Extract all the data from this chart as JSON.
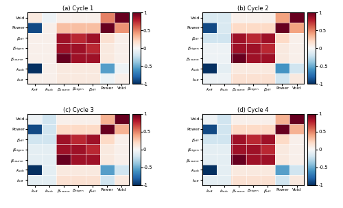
{
  "titles": [
    "(a) Cycle 1",
    "(b) Cycle 2",
    "(c) Cycle 3",
    "(d) Cycle 4"
  ],
  "xlabel_labels": [
    "$k_{\\mathrm{eff}}$",
    "$k_{\\mathrm{sub}}$",
    "$\\beta_{\\mathrm{source}}$",
    "$\\beta_{\\mathrm{eigen}}$",
    "$\\beta_{\\mathrm{eff}}$",
    "Power",
    "Void"
  ],
  "ylabel_labels": [
    "Void",
    "Power",
    "$\\beta_{\\mathrm{eff}}$",
    "$\\beta_{\\mathrm{eigen}}$",
    "$\\beta_{\\mathrm{source}}$",
    "$k_{\\mathrm{sub}}$",
    "$k_{\\mathrm{eff}}$"
  ],
  "matrices": {
    "C1": [
      [
        0.1,
        -0.05,
        0.05,
        0.05,
        0.05,
        0.5,
        1.0
      ],
      [
        -0.9,
        0.05,
        0.3,
        0.3,
        0.3,
        1.0,
        0.45
      ],
      [
        0.05,
        0.05,
        0.85,
        0.75,
        0.85,
        0.15,
        0.05
      ],
      [
        0.05,
        0.05,
        0.85,
        0.85,
        0.75,
        0.1,
        0.05
      ],
      [
        0.05,
        0.05,
        1.0,
        0.85,
        0.85,
        0.1,
        0.05
      ],
      [
        -1.0,
        0.05,
        0.1,
        0.1,
        0.1,
        -0.55,
        -0.05
      ],
      [
        0.05,
        0.05,
        0.1,
        0.1,
        0.1,
        -0.05,
        0.05
      ]
    ],
    "C2": [
      [
        -0.15,
        -0.15,
        0.05,
        0.05,
        0.05,
        0.4,
        1.0
      ],
      [
        -0.9,
        -0.15,
        0.2,
        0.2,
        0.2,
        1.0,
        0.4
      ],
      [
        -0.2,
        -0.2,
        0.85,
        0.75,
        0.85,
        0.2,
        0.05
      ],
      [
        -0.05,
        -0.05,
        0.85,
        0.85,
        0.75,
        0.1,
        0.05
      ],
      [
        -0.05,
        -0.05,
        1.0,
        0.85,
        0.85,
        0.1,
        0.05
      ],
      [
        -1.0,
        -0.1,
        0.1,
        0.1,
        0.1,
        -0.6,
        -0.2
      ],
      [
        -0.05,
        -0.05,
        0.15,
        0.15,
        0.15,
        -0.2,
        0.1
      ]
    ],
    "C3": [
      [
        -0.05,
        -0.2,
        0.05,
        0.05,
        0.05,
        0.35,
        1.0
      ],
      [
        -0.9,
        -0.2,
        0.2,
        0.2,
        0.2,
        1.0,
        0.35
      ],
      [
        -0.2,
        -0.2,
        0.85,
        0.75,
        0.85,
        0.2,
        0.05
      ],
      [
        -0.1,
        -0.1,
        0.85,
        0.85,
        0.75,
        0.1,
        0.05
      ],
      [
        -0.1,
        -0.1,
        1.0,
        0.85,
        0.85,
        0.1,
        0.05
      ],
      [
        -1.0,
        -0.1,
        0.1,
        0.1,
        0.1,
        -0.55,
        -0.2
      ],
      [
        -0.1,
        -0.1,
        0.15,
        0.15,
        0.15,
        -0.2,
        0.1
      ]
    ],
    "C4": [
      [
        -0.05,
        -0.2,
        0.05,
        0.05,
        0.05,
        0.35,
        1.0
      ],
      [
        -0.9,
        -0.2,
        0.2,
        0.2,
        0.2,
        1.0,
        0.35
      ],
      [
        -0.2,
        -0.2,
        0.85,
        0.75,
        0.85,
        0.2,
        0.05
      ],
      [
        -0.1,
        -0.1,
        0.85,
        0.85,
        0.75,
        0.1,
        0.05
      ],
      [
        -0.1,
        -0.1,
        1.0,
        0.85,
        0.85,
        0.1,
        0.05
      ],
      [
        -1.0,
        -0.1,
        0.1,
        0.1,
        0.1,
        -0.55,
        -0.2
      ],
      [
        -0.1,
        -0.1,
        0.15,
        0.15,
        0.15,
        -0.2,
        0.1
      ]
    ]
  },
  "vmin": -1,
  "vmax": 1,
  "figsize": [
    5.0,
    3.03
  ],
  "dpi": 100,
  "title_fontsize": 6,
  "tick_fontsize": 4.5,
  "cbar_tick_fontsize": 5,
  "cbar_ticks": [
    -1,
    -0.5,
    0,
    0.5,
    1
  ],
  "cbar_ticklabels": [
    "-1",
    "-0.5",
    "0",
    "0.5",
    "1"
  ]
}
